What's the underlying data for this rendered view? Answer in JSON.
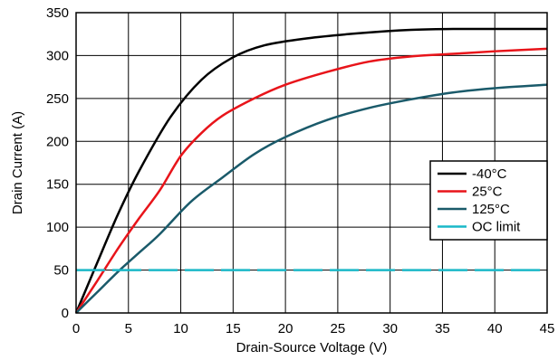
{
  "chart_data": {
    "type": "line",
    "title": "",
    "xlabel": "Drain-Source Voltage (V)",
    "ylabel": "Drain Current (A)",
    "xlim": [
      0,
      45
    ],
    "ylim": [
      0,
      350
    ],
    "xticks": [
      0,
      5,
      10,
      15,
      20,
      25,
      30,
      35,
      40,
      45
    ],
    "yticks": [
      0,
      50,
      100,
      150,
      200,
      250,
      300,
      350
    ],
    "xtick_labels": [
      "0",
      "5",
      "10",
      "15",
      "20",
      "25",
      "30",
      "35",
      "40",
      "45"
    ],
    "ytick_labels": [
      "0",
      "50",
      "100",
      "150",
      "200",
      "250",
      "300",
      "350"
    ],
    "grid": true,
    "legend_position": "right",
    "series": [
      {
        "name": "-40°C",
        "color": "#000000",
        "x": [
          0,
          2,
          4,
          6,
          9,
          12,
          15,
          18,
          22,
          27,
          32,
          36,
          40,
          45
        ],
        "y": [
          0,
          58,
          115,
          165,
          228,
          272,
          298,
          312,
          320,
          326,
          330,
          331,
          331,
          331
        ]
      },
      {
        "name": "25°C",
        "color": "#e8141a",
        "x": [
          0,
          2,
          4,
          6,
          8,
          10,
          12,
          14,
          17,
          20,
          24,
          28,
          32,
          36,
          40,
          45
        ],
        "y": [
          0,
          37,
          75,
          110,
          143,
          183,
          210,
          230,
          250,
          266,
          281,
          293,
          299,
          302,
          305,
          308
        ]
      },
      {
        "name": "125°C",
        "color": "#1a5a6a",
        "x": [
          0,
          2,
          4,
          6,
          8,
          11,
          14,
          17,
          20,
          24,
          28,
          32,
          36,
          40,
          45
        ],
        "y": [
          0,
          24,
          48,
          70,
          92,
          130,
          158,
          185,
          205,
          225,
          239,
          249,
          257,
          262,
          266
        ]
      },
      {
        "name": "OC limit",
        "color": "#1ab8c8",
        "style": "dashed",
        "x": [
          0,
          45
        ],
        "y": [
          50,
          50
        ]
      }
    ]
  }
}
